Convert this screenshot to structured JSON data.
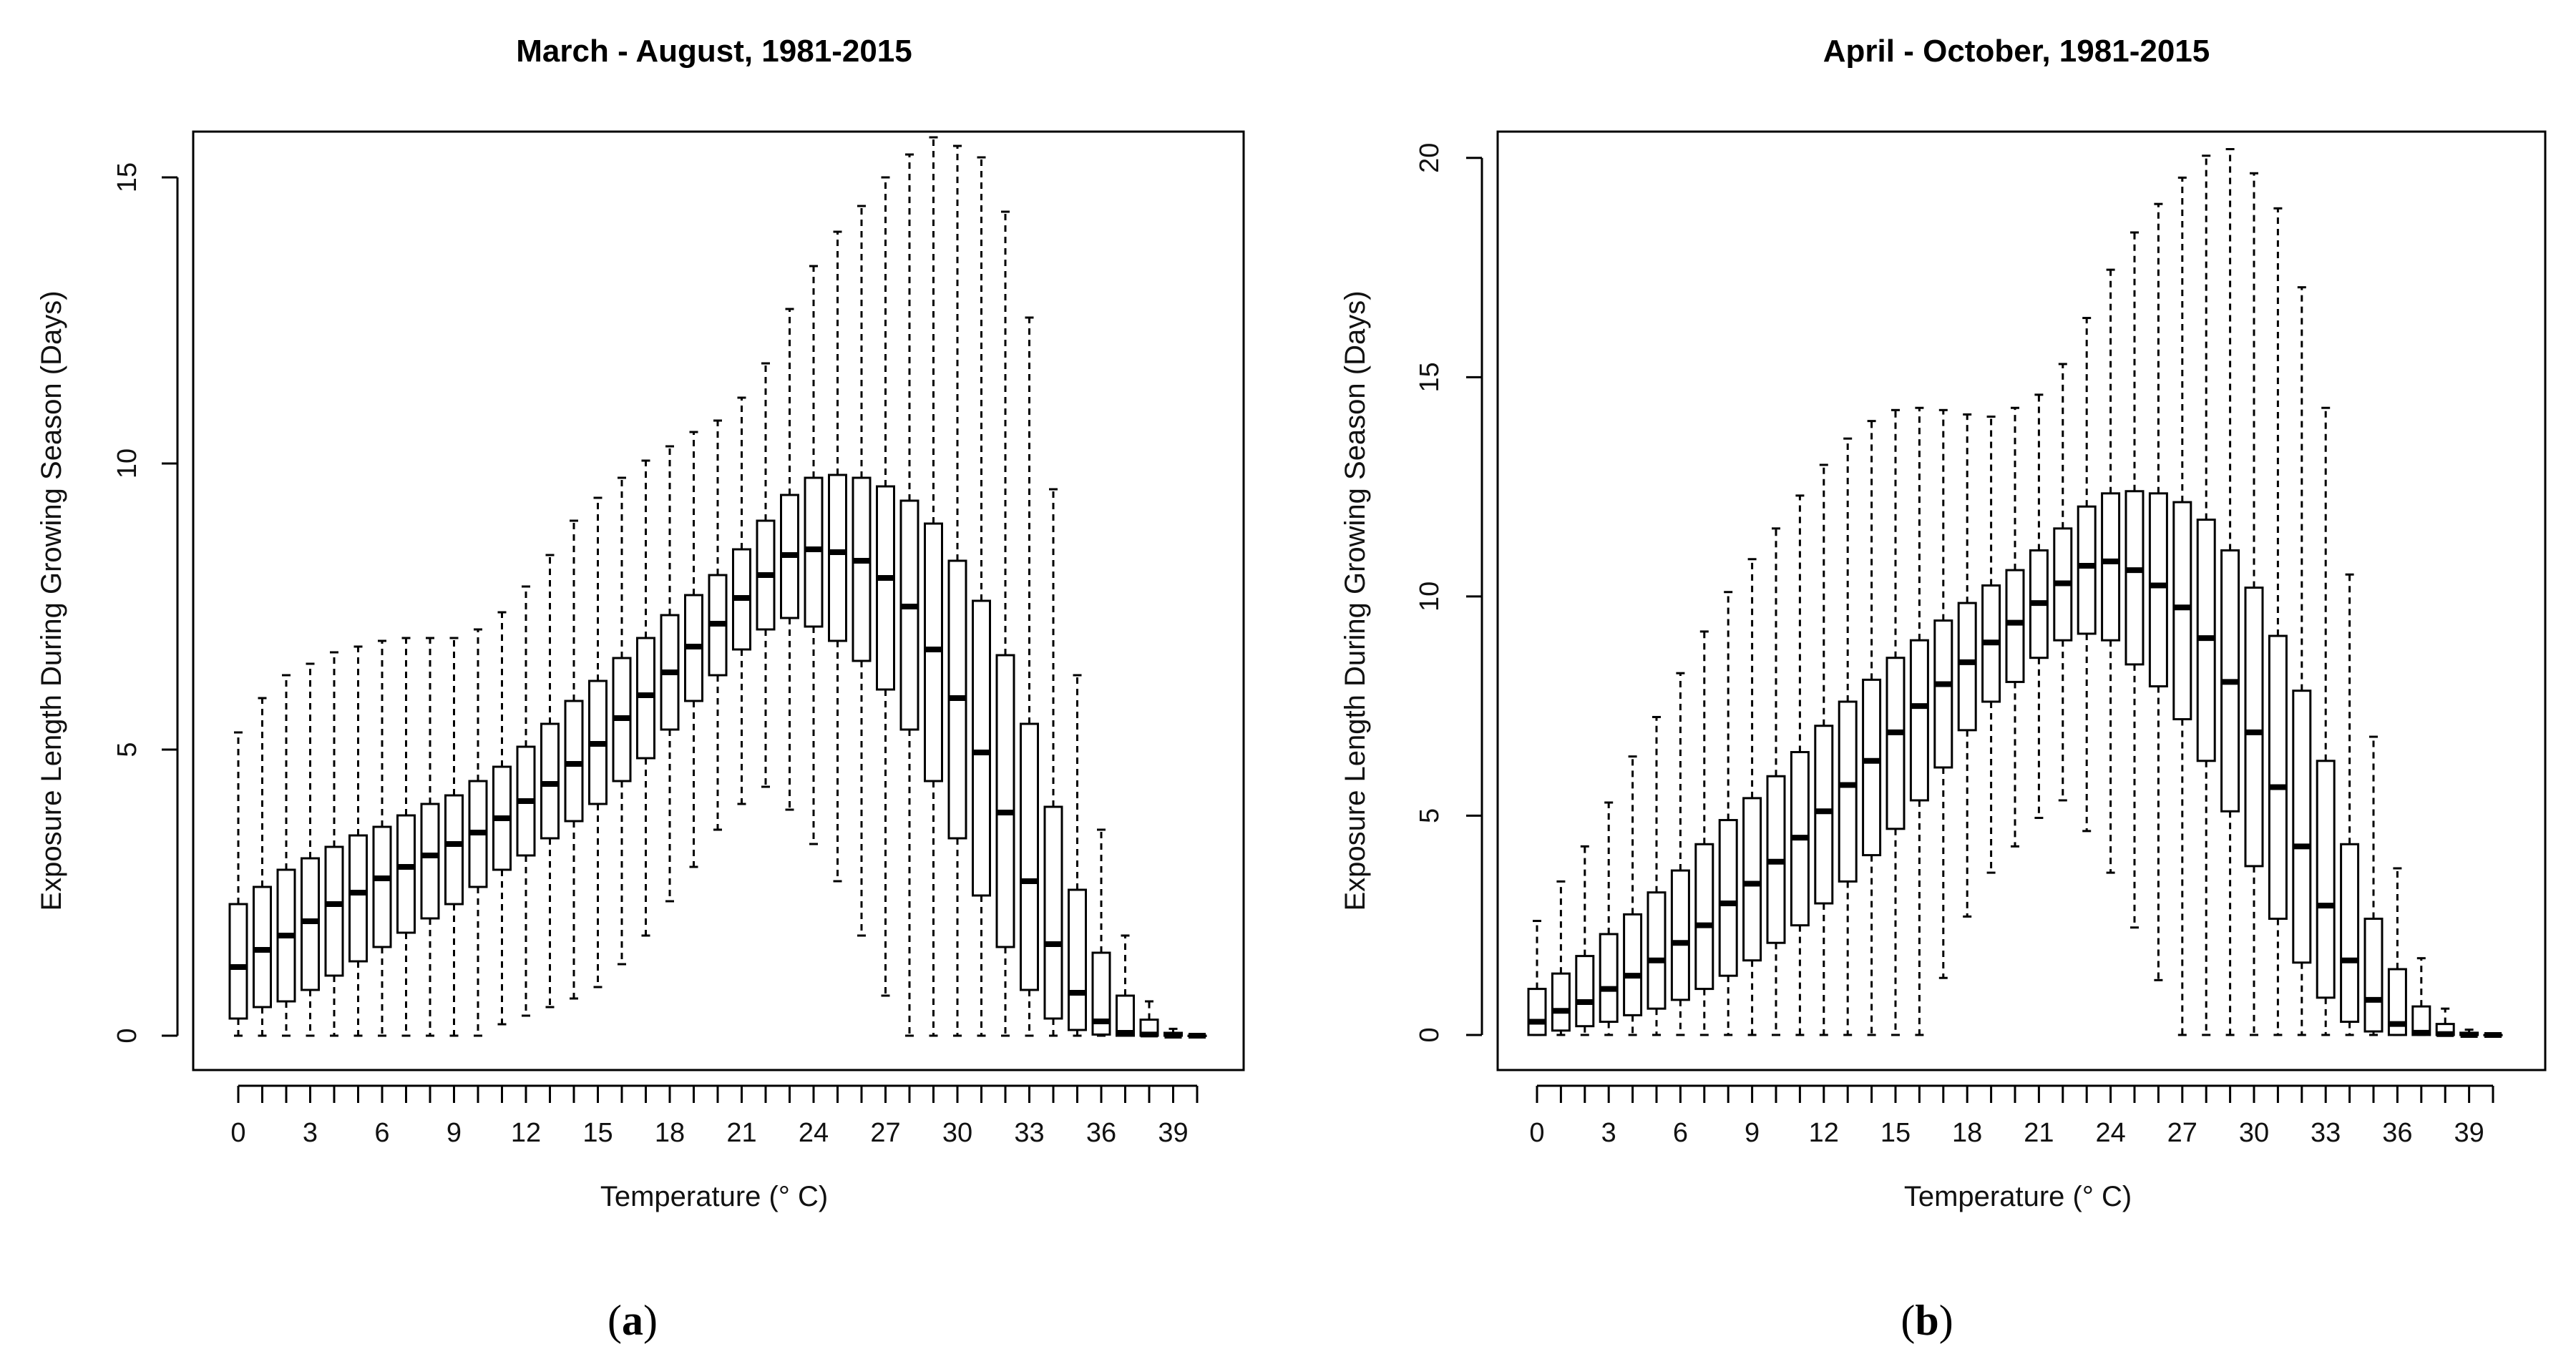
{
  "chart_data": [
    {
      "type": "boxplot",
      "panel_label_parts": [
        "(",
        "a",
        ")"
      ],
      "title": "March - August, 1981-2015",
      "xlabel": "Temperature (° C)",
      "ylabel": "Exposure Length During Growing Season (Days)",
      "ylim": [
        -0.6,
        15.8
      ],
      "yticks": [
        0,
        5,
        10,
        15
      ],
      "xtick_labels": [
        "0",
        "3",
        "6",
        "9",
        "12",
        "15",
        "18",
        "21",
        "24",
        "27",
        "30",
        "33",
        "36",
        "39"
      ],
      "xtick_positions": [
        0,
        3,
        6,
        9,
        12,
        15,
        18,
        21,
        24,
        27,
        30,
        33,
        36,
        39
      ],
      "x": [
        0,
        1,
        2,
        3,
        4,
        5,
        6,
        7,
        8,
        9,
        10,
        11,
        12,
        13,
        14,
        15,
        16,
        17,
        18,
        19,
        20,
        21,
        22,
        23,
        24,
        25,
        26,
        27,
        28,
        29,
        30,
        31,
        32,
        33,
        34,
        35,
        36,
        37,
        38,
        39,
        40
      ],
      "stats": [
        [
          0,
          0.3,
          1.2,
          2.3,
          5.3
        ],
        [
          0,
          0.5,
          1.5,
          2.6,
          5.9
        ],
        [
          0,
          0.6,
          1.75,
          2.9,
          6.3
        ],
        [
          0,
          0.8,
          2,
          3.1,
          6.5
        ],
        [
          0,
          1.05,
          2.3,
          3.3,
          6.7
        ],
        [
          0,
          1.3,
          2.5,
          3.5,
          6.8
        ],
        [
          0,
          1.55,
          2.75,
          3.65,
          6.9
        ],
        [
          0,
          1.8,
          2.95,
          3.85,
          6.95
        ],
        [
          0,
          2.05,
          3.15,
          4.05,
          6.95
        ],
        [
          0,
          2.3,
          3.35,
          4.2,
          6.95
        ],
        [
          0,
          2.6,
          3.55,
          4.45,
          7.1
        ],
        [
          0.2,
          2.9,
          3.8,
          4.7,
          7.4
        ],
        [
          0.35,
          3.15,
          4.1,
          5.05,
          7.85
        ],
        [
          0.5,
          3.45,
          4.4,
          5.45,
          8.4
        ],
        [
          0.65,
          3.75,
          4.75,
          5.85,
          9
        ],
        [
          0.85,
          4.05,
          5.1,
          6.2,
          9.4
        ],
        [
          1.25,
          4.45,
          5.55,
          6.6,
          9.75
        ],
        [
          1.75,
          4.85,
          5.95,
          6.95,
          10.05
        ],
        [
          2.35,
          5.35,
          6.35,
          7.35,
          10.3
        ],
        [
          2.95,
          5.85,
          6.8,
          7.7,
          10.55
        ],
        [
          3.6,
          6.3,
          7.2,
          8.05,
          10.75
        ],
        [
          4.05,
          6.75,
          7.65,
          8.5,
          11.15
        ],
        [
          4.35,
          7.1,
          8.05,
          9,
          11.75
        ],
        [
          3.95,
          7.3,
          8.4,
          9.45,
          12.7
        ],
        [
          3.35,
          7.15,
          8.5,
          9.75,
          13.45
        ],
        [
          2.7,
          6.9,
          8.45,
          9.8,
          14.05
        ],
        [
          1.75,
          6.55,
          8.3,
          9.75,
          14.5
        ],
        [
          0.7,
          6.05,
          8,
          9.6,
          15
        ],
        [
          0,
          5.35,
          7.5,
          9.35,
          15.4
        ],
        [
          0,
          4.45,
          6.75,
          8.95,
          15.7
        ],
        [
          0,
          3.45,
          5.9,
          8.3,
          15.55
        ],
        [
          0,
          2.45,
          4.95,
          7.6,
          15.35
        ],
        [
          0,
          1.55,
          3.9,
          6.65,
          14.4
        ],
        [
          0,
          0.8,
          2.7,
          5.45,
          12.55
        ],
        [
          0,
          0.3,
          1.6,
          4,
          9.55
        ],
        [
          0,
          0.1,
          0.75,
          2.55,
          6.3
        ],
        [
          0,
          0.02,
          0.25,
          1.45,
          3.6
        ],
        [
          0,
          0,
          0.05,
          0.7,
          1.75
        ],
        [
          0,
          0,
          0.02,
          0.28,
          0.6
        ],
        [
          0,
          0,
          0,
          0.05,
          0.12
        ],
        [
          0,
          0,
          0,
          0,
          0
        ]
      ]
    },
    {
      "type": "boxplot",
      "panel_label_parts": [
        "(",
        "b",
        ")"
      ],
      "title": "April - October, 1981-2015",
      "xlabel": "Temperature (° C)",
      "ylabel": "Exposure Length During Growing Season (Days)",
      "ylim": [
        -0.8,
        20.6
      ],
      "yticks": [
        0,
        5,
        10,
        15,
        20
      ],
      "xtick_labels": [
        "0",
        "3",
        "6",
        "9",
        "12",
        "15",
        "18",
        "21",
        "24",
        "27",
        "30",
        "33",
        "36",
        "39"
      ],
      "xtick_positions": [
        0,
        3,
        6,
        9,
        12,
        15,
        18,
        21,
        24,
        27,
        30,
        33,
        36,
        39
      ],
      "x": [
        0,
        1,
        2,
        3,
        4,
        5,
        6,
        7,
        8,
        9,
        10,
        11,
        12,
        13,
        14,
        15,
        16,
        17,
        18,
        19,
        20,
        21,
        22,
        23,
        24,
        25,
        26,
        27,
        28,
        29,
        30,
        31,
        32,
        33,
        34,
        35,
        36,
        37,
        38,
        39,
        40
      ],
      "stats": [
        [
          0,
          0,
          0.3,
          1.05,
          2.6
        ],
        [
          0,
          0.1,
          0.55,
          1.4,
          3.5
        ],
        [
          0,
          0.2,
          0.75,
          1.8,
          4.3
        ],
        [
          0,
          0.3,
          1.05,
          2.3,
          5.3
        ],
        [
          0,
          0.45,
          1.35,
          2.75,
          6.35
        ],
        [
          0,
          0.6,
          1.7,
          3.25,
          7.25
        ],
        [
          0,
          0.8,
          2.1,
          3.75,
          8.25
        ],
        [
          0,
          1.05,
          2.5,
          4.35,
          9.2
        ],
        [
          0,
          1.35,
          3,
          4.9,
          10.1
        ],
        [
          0,
          1.7,
          3.45,
          5.4,
          10.85
        ],
        [
          0,
          2.1,
          3.95,
          5.9,
          11.55
        ],
        [
          0,
          2.5,
          4.5,
          6.45,
          12.3
        ],
        [
          0,
          3,
          5.1,
          7.05,
          13
        ],
        [
          0,
          3.5,
          5.7,
          7.6,
          13.6
        ],
        [
          0,
          4.1,
          6.25,
          8.1,
          14
        ],
        [
          0,
          4.7,
          6.9,
          8.6,
          14.25
        ],
        [
          0,
          5.35,
          7.5,
          9,
          14.3
        ],
        [
          1.3,
          6.1,
          8,
          9.45,
          14.25
        ],
        [
          2.7,
          6.95,
          8.5,
          9.85,
          14.15
        ],
        [
          3.7,
          7.6,
          8.95,
          10.25,
          14.1
        ],
        [
          4.3,
          8.05,
          9.4,
          10.6,
          14.3
        ],
        [
          4.95,
          8.6,
          9.85,
          11.05,
          14.6
        ],
        [
          5.35,
          9,
          10.3,
          11.55,
          15.3
        ],
        [
          4.65,
          9.15,
          10.7,
          12.05,
          16.35
        ],
        [
          3.7,
          9,
          10.8,
          12.35,
          17.45
        ],
        [
          2.45,
          8.45,
          10.6,
          12.4,
          18.3
        ],
        [
          1.25,
          7.95,
          10.25,
          12.35,
          18.95
        ],
        [
          0,
          7.2,
          9.75,
          12.15,
          19.55
        ],
        [
          0,
          6.25,
          9.05,
          11.75,
          20.05
        ],
        [
          0,
          5.1,
          8.05,
          11.05,
          20.2
        ],
        [
          0,
          3.85,
          6.9,
          10.2,
          19.65
        ],
        [
          0,
          2.65,
          5.65,
          9.1,
          18.85
        ],
        [
          0,
          1.65,
          4.3,
          7.85,
          17.05
        ],
        [
          0,
          0.85,
          2.95,
          6.25,
          14.3
        ],
        [
          0,
          0.3,
          1.7,
          4.35,
          10.5
        ],
        [
          0,
          0.08,
          0.8,
          2.65,
          6.8
        ],
        [
          0,
          0,
          0.25,
          1.5,
          3.8
        ],
        [
          0,
          0,
          0.05,
          0.65,
          1.75
        ],
        [
          0,
          0,
          0.02,
          0.25,
          0.6
        ],
        [
          0,
          0,
          0,
          0.05,
          0.12
        ],
        [
          0,
          0,
          0,
          0,
          0
        ]
      ]
    }
  ]
}
